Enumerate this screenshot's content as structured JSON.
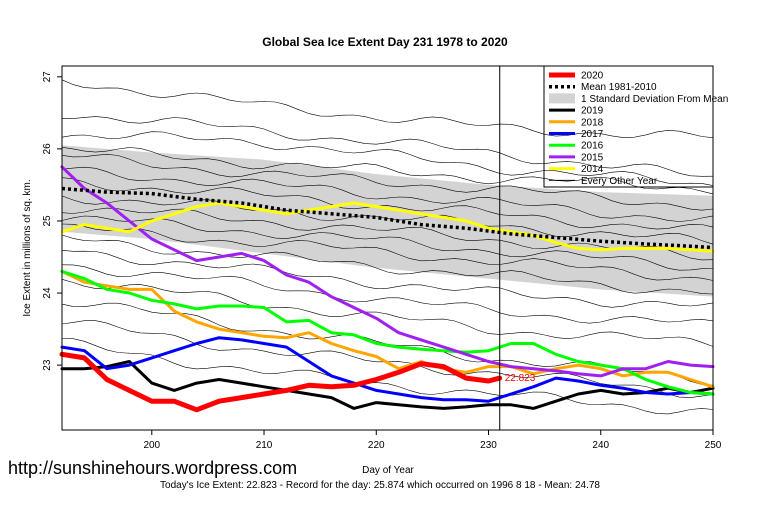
{
  "chart_data": {
    "type": "line",
    "title": "Global Sea Ice Extent Day 231 1978 to 2020",
    "xlabel": "Day of Year",
    "ylabel": "Ice Extent in millions of sq. km.",
    "xlim": [
      192,
      250
    ],
    "ylim": [
      22.1,
      27.15
    ],
    "x_ticks": [
      200,
      210,
      220,
      230,
      240,
      250
    ],
    "y_ticks": [
      23,
      24,
      25,
      26,
      27
    ],
    "current_day": 231,
    "legend_position": "top-right",
    "legend": [
      {
        "label": "2020",
        "color": "#ff0000",
        "style": "thick"
      },
      {
        "label": "Mean 1981-2010",
        "color": "#000000",
        "style": "dotted"
      },
      {
        "label": "1 Standard Deviation From Mean",
        "color": "#d3d3d3",
        "style": "band"
      },
      {
        "label": "2019",
        "color": "#000000",
        "style": "line"
      },
      {
        "label": "2018",
        "color": "#ffa500",
        "style": "line"
      },
      {
        "label": "2017",
        "color": "#0000ff",
        "style": "line"
      },
      {
        "label": "2016",
        "color": "#00ff00",
        "style": "line"
      },
      {
        "label": "2015",
        "color": "#a020f0",
        "style": "line"
      },
      {
        "label": "2014",
        "color": "#ffff00",
        "style": "line"
      },
      {
        "label": "Every Other Year",
        "color": "#000000",
        "style": "thin"
      }
    ],
    "series": [
      {
        "name": "2020",
        "color": "#ff0000",
        "width": 5,
        "x": [
          192,
          194,
          196,
          198,
          200,
          202,
          204,
          206,
          208,
          210,
          212,
          214,
          216,
          218,
          220,
          222,
          224,
          226,
          228,
          230,
          231
        ],
        "values": [
          23.15,
          23.1,
          22.8,
          22.65,
          22.5,
          22.5,
          22.38,
          22.5,
          22.55,
          22.6,
          22.65,
          22.72,
          22.7,
          22.72,
          22.8,
          22.9,
          23.02,
          22.98,
          22.82,
          22.78,
          22.82
        ]
      },
      {
        "name": "Mean 1981-2010",
        "color": "#000000",
        "width": 3.5,
        "dash": "3,3",
        "x": [
          192,
          196,
          200,
          204,
          208,
          212,
          216,
          220,
          224,
          228,
          232,
          236,
          240,
          244,
          248,
          250
        ],
        "values": [
          25.45,
          25.4,
          25.38,
          25.3,
          25.25,
          25.15,
          25.1,
          25.05,
          24.95,
          24.9,
          24.82,
          24.77,
          24.72,
          24.68,
          24.65,
          24.63
        ]
      },
      {
        "name": "2019",
        "color": "#000000",
        "width": 3,
        "x": [
          192,
          194,
          196,
          198,
          200,
          202,
          204,
          206,
          208,
          210,
          212,
          214,
          216,
          218,
          220,
          222,
          224,
          226,
          228,
          230,
          232,
          234,
          236,
          238,
          240,
          242,
          244,
          246,
          248,
          250
        ],
        "values": [
          22.95,
          22.95,
          22.98,
          23.05,
          22.75,
          22.65,
          22.75,
          22.8,
          22.75,
          22.7,
          22.65,
          22.6,
          22.55,
          22.4,
          22.48,
          22.45,
          22.42,
          22.4,
          22.42,
          22.45,
          22.45,
          22.4,
          22.5,
          22.6,
          22.65,
          22.6,
          22.62,
          22.68,
          22.62,
          22.68
        ]
      },
      {
        "name": "2018",
        "color": "#ffa500",
        "width": 3,
        "x": [
          192,
          194,
          196,
          198,
          200,
          202,
          204,
          206,
          208,
          210,
          212,
          214,
          216,
          218,
          220,
          222,
          224,
          226,
          228,
          230,
          232,
          234,
          236,
          238,
          240,
          242,
          244,
          246,
          248,
          250
        ],
        "values": [
          24.3,
          24.15,
          24.1,
          24.05,
          24.05,
          23.75,
          23.6,
          23.5,
          23.45,
          23.4,
          23.38,
          23.45,
          23.3,
          23.2,
          23.12,
          22.95,
          23.05,
          22.95,
          22.9,
          22.98,
          22.98,
          22.88,
          22.95,
          23.0,
          22.95,
          22.85,
          22.9,
          22.9,
          22.8,
          22.7
        ]
      },
      {
        "name": "2017",
        "color": "#0000ff",
        "width": 3,
        "x": [
          192,
          194,
          196,
          198,
          200,
          202,
          204,
          206,
          208,
          210,
          212,
          214,
          216,
          218,
          220,
          222,
          224,
          226,
          228,
          230,
          232,
          234,
          236,
          238,
          240,
          242,
          244,
          246,
          248,
          250
        ],
        "values": [
          23.25,
          23.2,
          22.95,
          23.0,
          23.1,
          23.2,
          23.3,
          23.38,
          23.35,
          23.3,
          23.25,
          23.05,
          22.85,
          22.75,
          22.65,
          22.6,
          22.55,
          22.52,
          22.52,
          22.5,
          22.6,
          22.7,
          22.82,
          22.78,
          22.72,
          22.68,
          22.62,
          22.6,
          22.62,
          22.6
        ]
      },
      {
        "name": "2016",
        "color": "#00ff00",
        "width": 3,
        "x": [
          192,
          194,
          196,
          198,
          200,
          202,
          204,
          206,
          208,
          210,
          212,
          214,
          216,
          218,
          220,
          222,
          224,
          226,
          228,
          230,
          232,
          234,
          236,
          238,
          240,
          242,
          244,
          246,
          248,
          250
        ],
        "values": [
          24.3,
          24.2,
          24.05,
          24.0,
          23.9,
          23.85,
          23.78,
          23.82,
          23.82,
          23.8,
          23.6,
          23.62,
          23.45,
          23.42,
          23.3,
          23.25,
          23.22,
          23.2,
          23.18,
          23.2,
          23.3,
          23.3,
          23.15,
          23.05,
          23.0,
          22.95,
          22.8,
          22.7,
          22.62,
          22.6
        ]
      },
      {
        "name": "2015",
        "color": "#a020f0",
        "width": 3,
        "x": [
          192,
          194,
          196,
          198,
          200,
          202,
          204,
          206,
          208,
          210,
          212,
          214,
          216,
          218,
          220,
          222,
          224,
          226,
          228,
          230,
          232,
          234,
          236,
          238,
          240,
          242,
          244,
          246,
          248,
          250
        ],
        "values": [
          25.75,
          25.45,
          25.25,
          25.0,
          24.75,
          24.6,
          24.45,
          24.5,
          24.55,
          24.45,
          24.25,
          24.15,
          23.95,
          23.8,
          23.65,
          23.45,
          23.35,
          23.25,
          23.15,
          23.05,
          22.98,
          22.95,
          22.92,
          22.88,
          22.85,
          22.95,
          22.95,
          23.05,
          23.0,
          22.98
        ]
      },
      {
        "name": "2014",
        "color": "#ffff00",
        "width": 3,
        "x": [
          192,
          194,
          196,
          198,
          200,
          202,
          204,
          206,
          208,
          210,
          212,
          214,
          216,
          218,
          220,
          222,
          224,
          226,
          228,
          230,
          232,
          234,
          236,
          238,
          240,
          242,
          244,
          246,
          248,
          250
        ],
        "values": [
          24.85,
          24.95,
          24.9,
          24.85,
          25.0,
          25.1,
          25.2,
          25.25,
          25.2,
          25.15,
          25.1,
          25.15,
          25.2,
          25.25,
          25.2,
          25.15,
          25.1,
          25.05,
          25.0,
          24.9,
          24.85,
          24.8,
          24.7,
          24.62,
          24.6,
          24.62,
          24.62,
          24.62,
          24.6,
          24.58
        ]
      }
    ],
    "std_band": {
      "x": [
        192,
        200,
        210,
        220,
        230,
        240,
        250
      ],
      "upper": [
        26.05,
        25.95,
        25.85,
        25.65,
        25.5,
        25.4,
        25.35
      ],
      "lower": [
        24.85,
        24.75,
        24.55,
        24.35,
        24.2,
        24.05,
        23.95
      ]
    },
    "annotation": {
      "text": "22.823",
      "color": "#ff0000"
    },
    "background_years": [
      {
        "x": [
          192,
          210,
          230,
          250
        ],
        "values": [
          26.95,
          26.6,
          26.3,
          26.15
        ]
      },
      {
        "x": [
          192,
          210,
          230,
          250
        ],
        "values": [
          26.5,
          26.25,
          25.95,
          25.6
        ]
      },
      {
        "x": [
          192,
          210,
          230,
          250
        ],
        "values": [
          26.2,
          26.1,
          25.75,
          25.5
        ]
      },
      {
        "x": [
          192,
          210,
          230,
          250
        ],
        "values": [
          26.0,
          25.8,
          25.6,
          25.45
        ]
      },
      {
        "x": [
          192,
          210,
          230,
          250
        ],
        "values": [
          25.9,
          25.65,
          25.45,
          25.2
        ]
      },
      {
        "x": [
          192,
          210,
          230,
          250
        ],
        "values": [
          25.7,
          25.5,
          25.25,
          25.0
        ]
      },
      {
        "x": [
          192,
          210,
          230,
          250
        ],
        "values": [
          25.55,
          25.35,
          25.1,
          24.85
        ]
      },
      {
        "x": [
          192,
          210,
          230,
          250
        ],
        "values": [
          25.35,
          25.15,
          24.95,
          24.7
        ]
      },
      {
        "x": [
          192,
          210,
          230,
          250
        ],
        "values": [
          25.2,
          25.0,
          24.75,
          24.5
        ]
      },
      {
        "x": [
          192,
          210,
          230,
          250
        ],
        "values": [
          25.05,
          24.85,
          24.6,
          24.35
        ]
      },
      {
        "x": [
          192,
          210,
          230,
          250
        ],
        "values": [
          24.9,
          24.7,
          24.45,
          24.2
        ]
      },
      {
        "x": [
          192,
          210,
          230,
          250
        ],
        "values": [
          24.75,
          24.5,
          24.25,
          24.0
        ]
      },
      {
        "x": [
          192,
          210,
          230,
          250
        ],
        "values": [
          24.6,
          24.3,
          24.0,
          23.8
        ]
      },
      {
        "x": [
          192,
          210,
          230,
          250
        ],
        "values": [
          24.4,
          24.1,
          23.75,
          23.55
        ]
      },
      {
        "x": [
          192,
          210,
          230,
          250
        ],
        "values": [
          24.2,
          23.85,
          23.5,
          23.3
        ]
      },
      {
        "x": [
          192,
          210,
          230,
          250
        ],
        "values": [
          23.9,
          23.5,
          23.1,
          22.8
        ]
      },
      {
        "x": [
          192,
          210,
          230,
          250
        ],
        "values": [
          23.6,
          23.2,
          22.9,
          22.6
        ]
      },
      {
        "x": [
          192,
          210,
          230,
          250
        ],
        "values": [
          23.3,
          22.9,
          22.6,
          22.35
        ]
      }
    ]
  },
  "watermark": "http://sunshinehours.wordpress.com",
  "caption": "Today's Ice Extent: 22.823  - Record for the day: 25.874 which occurred on 1996 8 18  - Mean: 24.78"
}
